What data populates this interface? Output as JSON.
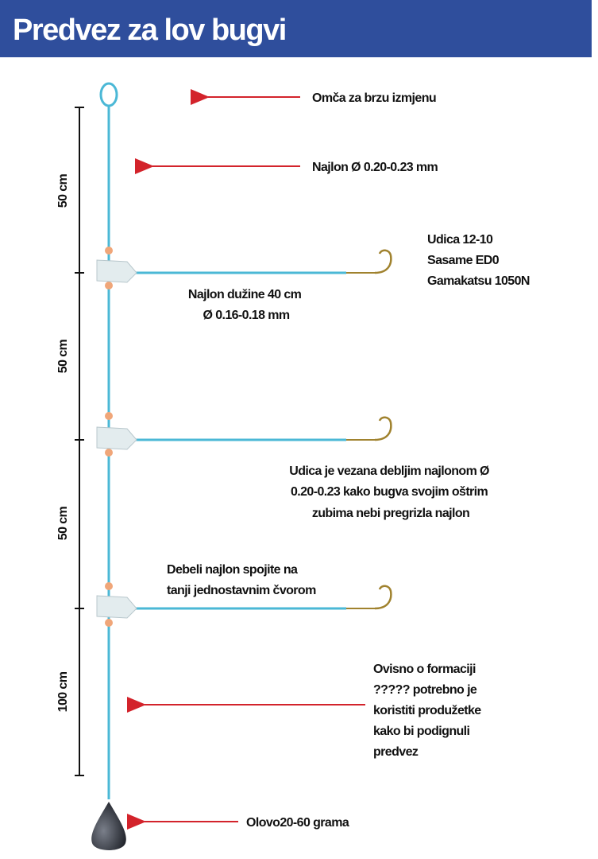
{
  "title": "Predvez za lov bugvi",
  "measurements": [
    "50 cm",
    "50 cm",
    "50 cm",
    "100 cm"
  ],
  "labels": {
    "loop": "Omča za brzu izmjenu",
    "main_line": "Najlon Ø 0.20-0.23 mm",
    "hook": [
      "Udica 12-10",
      "Sasame ED0",
      "Gamakatsu 1050N"
    ],
    "branch": [
      "Najlon dužine 40 cm",
      "Ø 0.16-0.18 mm"
    ],
    "hook_leader": [
      "Udica je vezana debljim najlonom Ø",
      "0.20-0.23 kako bugva svojim oštrim",
      "zubima nebi pregrizla najlon"
    ],
    "knot": [
      "Debeli najlon spojite na",
      "tanji jednostavnim čvorom"
    ],
    "extension": [
      "Ovisno o formaciji",
      "????? potrebno je",
      "koristiti produžetke",
      "kako bi podignuli",
      "predvez"
    ],
    "sinker": "Olovo20-60 grama"
  }
}
